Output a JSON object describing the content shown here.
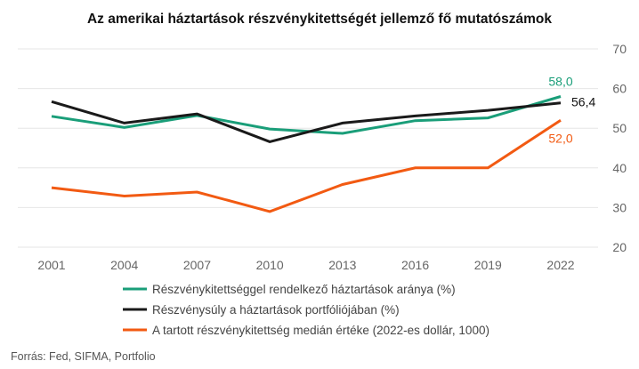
{
  "chart_data": {
    "type": "line",
    "title": "Az amerikai háztartások részvénykitettségét jellemző fő mutatószámok",
    "x": [
      "2001",
      "2004",
      "2007",
      "2010",
      "2013",
      "2016",
      "2019",
      "2022"
    ],
    "ylim": [
      20,
      70
    ],
    "yticks": [
      "20",
      "30",
      "40",
      "50",
      "60",
      "70"
    ],
    "y_axis_side": "right",
    "grid": true,
    "legend_position": "bottom-left",
    "series": [
      {
        "name": "Részvénykitettséggel rendelkező háztartások aránya (%)",
        "color": "#1a9e79",
        "values": [
          53.0,
          50.2,
          53.2,
          49.8,
          48.7,
          51.9,
          52.6,
          58.0
        ],
        "end_label": "58,0"
      },
      {
        "name": "Részvénysúly a háztartások portfóliójában (%)",
        "color": "#1a1a1a",
        "values": [
          56.7,
          51.3,
          53.6,
          46.6,
          51.3,
          53.1,
          54.5,
          56.4
        ],
        "end_label": "56,4"
      },
      {
        "name": "A tartott részvénykitettség medián értéke (2022-es dollár, 1000)",
        "color": "#f25a12",
        "values": [
          35.0,
          32.9,
          33.9,
          29.0,
          35.8,
          40.0,
          40.0,
          52.0
        ],
        "end_label": "52,0"
      }
    ]
  },
  "source": "Forrás: Fed, SIFMA, Portfolio"
}
